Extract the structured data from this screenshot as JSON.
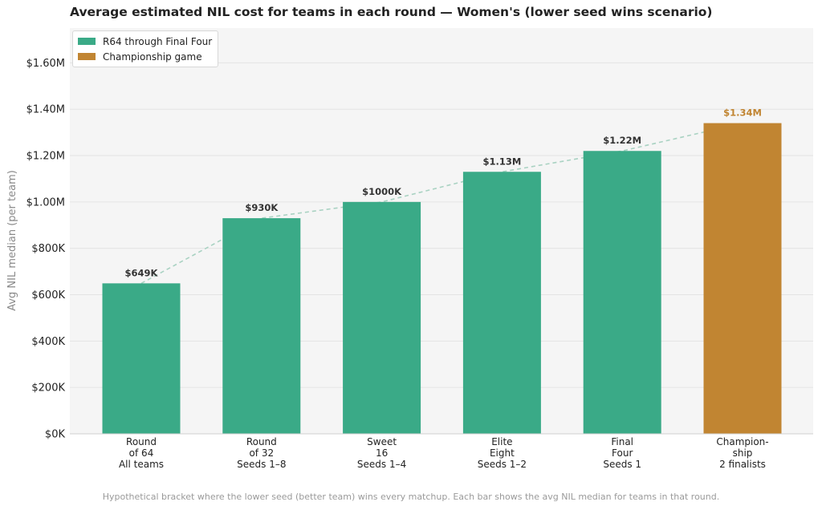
{
  "title": "Average estimated NIL cost for teams in each round — Women's (lower seed wins scenario)",
  "footnote": "Hypothetical bracket where the lower seed (better team) wins every matchup. Each bar shows the avg NIL median for teams in that round.",
  "colors": {
    "main": "#3aaa87",
    "championship": "#c18532",
    "trend": "#a9d2c2",
    "plot_bg": "#f5f5f5",
    "grid": "#e4e4e4"
  },
  "chart_data": {
    "type": "bar",
    "title": "Average estimated NIL cost for teams in each round — Women's (lower seed wins scenario)",
    "xlabel": "",
    "ylabel": "Avg NIL median (per team)",
    "ylim": [
      0,
      1750000
    ],
    "yticks": [
      0,
      200000,
      400000,
      600000,
      800000,
      1000000,
      1200000,
      1400000,
      1600000
    ],
    "ytick_labels": [
      "$0K",
      "$200K",
      "$400K",
      "$600K",
      "$800K",
      "$1.00M",
      "$1.20M",
      "$1.40M",
      "$1.60M"
    ],
    "categories": [
      [
        "Round",
        "of 64",
        "All teams"
      ],
      [
        "Round",
        "of 32",
        "Seeds 1–8"
      ],
      [
        "Sweet",
        "16",
        "Seeds 1–4"
      ],
      [
        "Elite",
        "Eight",
        "Seeds 1–2"
      ],
      [
        "Final",
        "Four",
        "Seeds 1"
      ],
      [
        "Champion-",
        "ship",
        "2 finalists"
      ]
    ],
    "values": [
      649000,
      930000,
      1000000,
      1130000,
      1220000,
      1340000
    ],
    "value_labels": [
      "$649K",
      "$930K",
      "$1000K",
      "$1.13M",
      "$1.22M",
      "$1.34M"
    ],
    "bar_groups": [
      0,
      0,
      0,
      0,
      0,
      1
    ],
    "legend": {
      "placement": "top-left",
      "entries": [
        {
          "label": "R64 through Final Four",
          "color": "#3aaa87"
        },
        {
          "label": "Championship game",
          "color": "#c18532"
        }
      ]
    },
    "trend_line": {
      "style": "dashed",
      "through": "bar tops"
    },
    "grid": true
  }
}
